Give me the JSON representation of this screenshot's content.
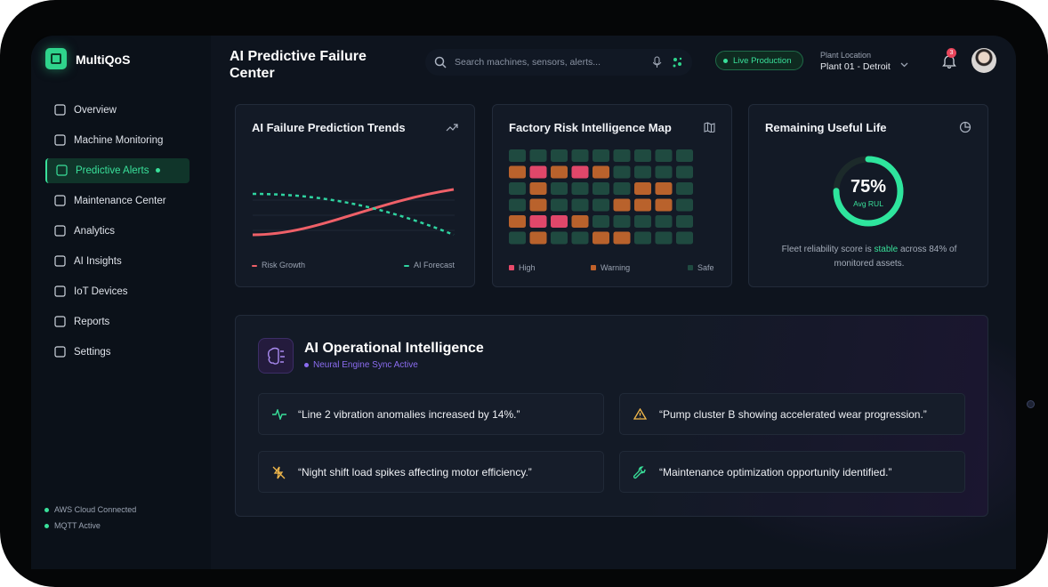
{
  "brand": "MultiQoS",
  "nav": [
    {
      "label": "Overview"
    },
    {
      "label": "Machine Monitoring"
    },
    {
      "label": "Predictive Alerts",
      "active": true
    },
    {
      "label": "Maintenance Center"
    },
    {
      "label": "Analytics"
    },
    {
      "label": "AI Insights"
    },
    {
      "label": "IoT Devices"
    },
    {
      "label": "Reports"
    },
    {
      "label": "Settings"
    }
  ],
  "status": [
    "AWS Cloud Connected",
    "MQTT Active"
  ],
  "header": {
    "title": "AI Predictive Failure Center",
    "search": "Search machines, sensors, alerts...",
    "live": "Live Production",
    "plant_label": "Plant Location",
    "plant": "Plant 01 - Detroit",
    "notifications": 3
  },
  "trends": {
    "title": "AI Failure Prediction Trends",
    "legend": [
      "Risk Growth",
      "AI Forecast"
    ]
  },
  "risk_map": {
    "title": "Factory Risk Intelligence Map",
    "legend": [
      "High",
      "Warning",
      "Safe"
    ]
  },
  "rul": {
    "title": "Remaining Useful Life",
    "value": 75,
    "label": "75%",
    "sub": "Avg RUL",
    "note": [
      "Fleet reliability score is ",
      "stable",
      " across 84% of monitored assets."
    ]
  },
  "intel": {
    "title": "AI Operational Intelligence",
    "sub": "Neural Engine Sync Active",
    "insights": [
      "“Line 2 vibration anomalies increased by 14%.”",
      "“Pump cluster B showing accelerated wear progression.”",
      "“Night shift load spikes affecting motor efficiency.”",
      "“Maintenance optimization opportunity identified.”"
    ]
  }
}
